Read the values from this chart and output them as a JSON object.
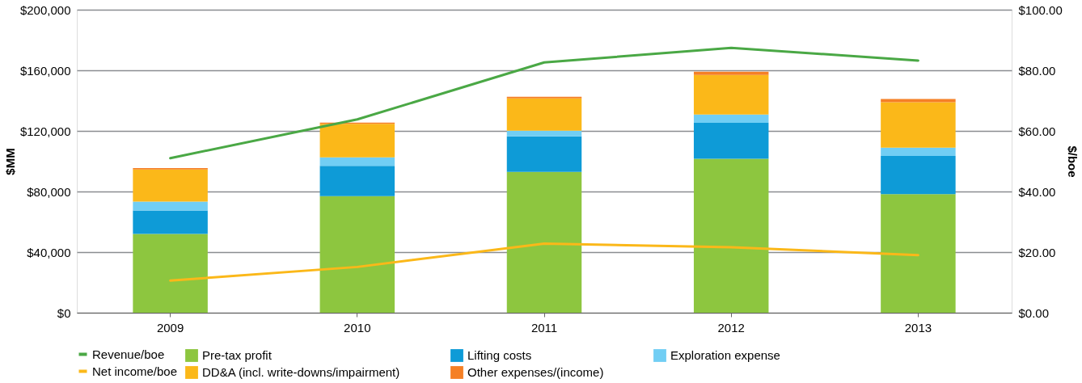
{
  "chart_data": {
    "type": "bar",
    "stacked": true,
    "categories": [
      "2009",
      "2010",
      "2011",
      "2012",
      "2013"
    ],
    "ylabel": "$MM",
    "y2label": "$/boe",
    "ylim": [
      0,
      200000
    ],
    "yticks": [
      {
        "value": 0,
        "label": "$0"
      },
      {
        "value": 40000,
        "label": "$40,000"
      },
      {
        "value": 80000,
        "label": "$80,000"
      },
      {
        "value": 120000,
        "label": "$120,000"
      },
      {
        "value": 160000,
        "label": "$160,000"
      },
      {
        "value": 200000,
        "label": "$200,000"
      }
    ],
    "y2lim": [
      0,
      100
    ],
    "y2ticks": [
      {
        "value": 0,
        "label": "$0.00"
      },
      {
        "value": 20,
        "label": "$20.00"
      },
      {
        "value": 40,
        "label": "$40.00"
      },
      {
        "value": 60,
        "label": "$60.00"
      },
      {
        "value": 80,
        "label": "$80.00"
      },
      {
        "value": 100,
        "label": "$100.00"
      }
    ],
    "grid": "y",
    "legend": "bottom",
    "series": [
      {
        "name": "Pre-tax profit",
        "color": "#8dc63f",
        "values": [
          52000,
          77000,
          93000,
          101600,
          78300
        ]
      },
      {
        "name": "Lifting costs",
        "color": "#0e9bd7",
        "values": [
          15500,
          20000,
          23400,
          23800,
          25200
        ]
      },
      {
        "name": "Exploration expense",
        "color": "#71cef4",
        "values": [
          5800,
          5500,
          3800,
          5400,
          5400
        ]
      },
      {
        "name": "DD&A (incl. write-downs/impairment)",
        "color": "#fbb819",
        "values": [
          21200,
          22200,
          21300,
          26100,
          30000
        ]
      },
      {
        "name": "Other expenses/(income)",
        "color": "#f58025",
        "values": [
          1000,
          800,
          1000,
          2200,
          2200
        ]
      },
      {
        "name": "Revenue/boe",
        "color": "#4aa845",
        "type": "line",
        "axis": "y2",
        "values": [
          51.0,
          63.8,
          82.6,
          87.4,
          83.2
        ]
      },
      {
        "name": "Net income/boe",
        "color": "#fbb819",
        "type": "line",
        "axis": "y2",
        "values": [
          10.6,
          15.1,
          22.8,
          21.6,
          19.0
        ]
      }
    ]
  }
}
